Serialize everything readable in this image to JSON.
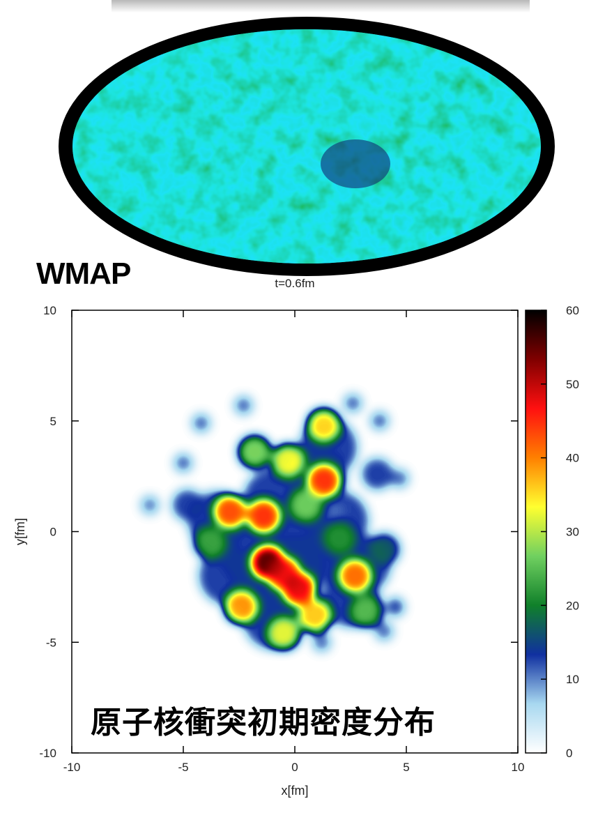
{
  "wmap_label": "WMAP",
  "chart_data": {
    "type": "heatmap",
    "title": "t=0.6fm",
    "xlabel": "x[fm]",
    "ylabel": "y[fm]",
    "xlim": [
      -10,
      10
    ],
    "ylim": [
      -10,
      10
    ],
    "xticks": [
      -10,
      -5,
      0,
      5,
      10
    ],
    "yticks": [
      -10,
      -5,
      0,
      5,
      10
    ],
    "colorbar_range": [
      0,
      60
    ],
    "colorbar_ticks": [
      0,
      10,
      20,
      30,
      40,
      50,
      60
    ],
    "colormap": [
      "#ffffff",
      "#a8d8f0",
      "#1030a0",
      "#10802a",
      "#70d060",
      "#ffff30",
      "#ff8000",
      "#ff1010",
      "#800000",
      "#000000"
    ],
    "annotation": "原子核衝突初期密度分布",
    "hotspots": [
      {
        "x": -1.2,
        "y": -1.4,
        "peak": 60
      },
      {
        "x": 0.2,
        "y": -2.6,
        "peak": 52
      },
      {
        "x": -0.5,
        "y": -1.9,
        "peak": 50
      },
      {
        "x": 1.3,
        "y": 2.3,
        "peak": 48
      },
      {
        "x": 1.3,
        "y": 4.8,
        "peak": 38
      },
      {
        "x": -1.4,
        "y": 0.7,
        "peak": 48
      },
      {
        "x": -2.9,
        "y": 0.9,
        "peak": 46
      },
      {
        "x": 2.7,
        "y": -2.0,
        "peak": 44
      },
      {
        "x": -2.4,
        "y": -3.4,
        "peak": 42
      },
      {
        "x": 0.9,
        "y": -3.8,
        "peak": 40
      },
      {
        "x": -0.3,
        "y": 3.2,
        "peak": 36
      },
      {
        "x": -1.8,
        "y": 3.6,
        "peak": 30
      },
      {
        "x": 3.2,
        "y": -3.6,
        "peak": 26
      },
      {
        "x": -3.8,
        "y": -0.5,
        "peak": 24
      },
      {
        "x": 2.0,
        "y": -0.3,
        "peak": 22
      },
      {
        "x": 4.0,
        "y": -0.8,
        "peak": 18
      },
      {
        "x": -0.5,
        "y": -4.6,
        "peak": 34
      },
      {
        "x": 0.5,
        "y": 1.2,
        "peak": 28
      },
      {
        "x": -4.8,
        "y": 1.2,
        "peak": 14
      },
      {
        "x": 3.7,
        "y": 2.6,
        "peak": 14
      }
    ],
    "isolated_blobs": [
      {
        "x": -4.2,
        "y": 4.9,
        "peak": 12
      },
      {
        "x": -2.3,
        "y": 5.7,
        "peak": 12
      },
      {
        "x": -5.0,
        "y": 3.1,
        "peak": 12
      },
      {
        "x": -6.5,
        "y": 1.2,
        "peak": 11
      },
      {
        "x": 2.6,
        "y": 5.8,
        "peak": 12
      },
      {
        "x": 3.8,
        "y": 5.0,
        "peak": 12
      },
      {
        "x": 4.7,
        "y": 2.4,
        "peak": 12
      },
      {
        "x": 4.5,
        "y": -3.4,
        "peak": 14
      },
      {
        "x": 4.0,
        "y": -4.5,
        "peak": 12
      },
      {
        "x": 1.2,
        "y": -5.0,
        "peak": 12
      },
      {
        "x": 1.8,
        "y": 0.9,
        "peak": 11
      }
    ]
  }
}
